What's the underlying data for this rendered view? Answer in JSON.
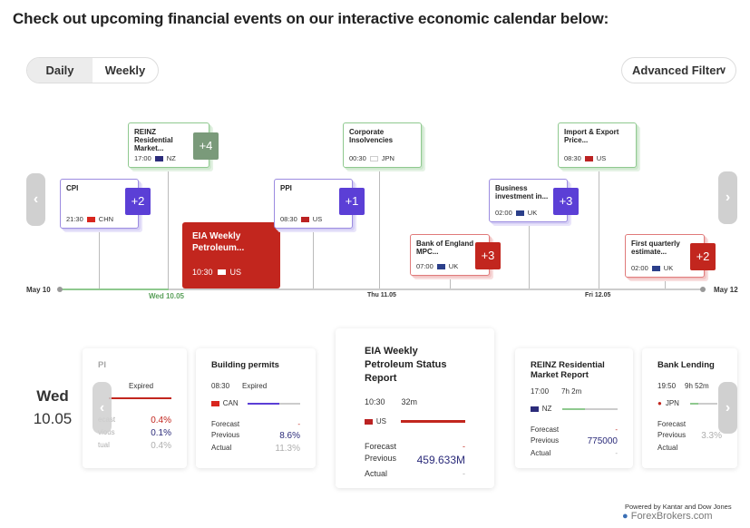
{
  "heading": "Check out upcoming financial events on our interactive economic calendar below:",
  "toggle": {
    "daily": "Daily",
    "weekly": "Weekly"
  },
  "advanced_filter": "Advanced Filter",
  "timeline": {
    "start": "May 10",
    "wed": "Wed 10.05",
    "thu": "Thu 11.05",
    "fri": "Fri 12.05",
    "end": "May 12"
  },
  "events": {
    "reinz": {
      "name": "REINZ Residential Market...",
      "time": "17:00",
      "country": "NZ",
      "badge": "+4"
    },
    "cpi": {
      "name": "CPI",
      "time": "21:30",
      "country": "CHN",
      "badge": "+2"
    },
    "eia": {
      "name": "EIA Weekly Petroleum...",
      "time": "10:30",
      "country": "US"
    },
    "corp": {
      "name": "Corporate Insolvencies",
      "time": "00:30",
      "country": "JPN"
    },
    "ppi": {
      "name": "PPI",
      "time": "08:30",
      "country": "US",
      "badge": "+1"
    },
    "boe": {
      "name": "Bank of England MPC...",
      "time": "07:00",
      "country": "UK",
      "badge": "+3"
    },
    "biz": {
      "name": "Business investment in...",
      "time": "02:00",
      "country": "UK",
      "badge": "+3"
    },
    "impexp": {
      "name": "Import & Export Price...",
      "time": "08:30",
      "country": "US"
    },
    "gdp": {
      "name": "First quarterly estimate...",
      "time": "02:00",
      "country": "UK",
      "badge": "+2"
    }
  },
  "day": {
    "name": "Wed",
    "date": "10.05"
  },
  "cards": {
    "cpi": {
      "title": "PI",
      "status": "Expired",
      "forecast_label": "ecast",
      "forecast": "0.4%",
      "previous_label": "vious",
      "previous": "0.1%",
      "actual_label": "tual",
      "actual": "0.4%"
    },
    "building": {
      "title": "Building permits",
      "time": "08:30",
      "status": "Expired",
      "country": "CAN",
      "forecast_label": "Forecast",
      "forecast": "-",
      "previous_label": "Previous",
      "previous": "8.6%",
      "actual_label": "Actual",
      "actual": "11.3%"
    },
    "eia": {
      "title": "EIA Weekly Petroleum Status Report",
      "time": "10:30",
      "duration": "32m",
      "country": "US",
      "forecast_label": "Forecast",
      "forecast": "-",
      "previous_label": "Previous",
      "previous": "459.633M",
      "actual_label": "Actual",
      "actual": "-"
    },
    "reinz": {
      "title": "REINZ Residential Market Report",
      "time": "17:00",
      "duration": "7h 2m",
      "country": "NZ",
      "forecast_label": "Forecast",
      "forecast": "-",
      "previous_label": "Previous",
      "previous": "775000",
      "actual_label": "Actual",
      "actual": "-"
    },
    "bank": {
      "title": "Bank Lending",
      "time": "19:50",
      "duration": "9h 52m",
      "country": "JPN",
      "forecast_label": "Forecast",
      "forecast": "-",
      "previous_label": "Previous",
      "previous": "3.3%",
      "actual_label": "Actual",
      "actual": ""
    }
  },
  "footer": {
    "powered": "Powered by Kantar and Dow Jones",
    "brand": "ForexBrokers.com"
  },
  "colors": {
    "red": "#c2261e",
    "purple": "#5b3fd6",
    "green": "#8fc98f",
    "navy": "#2b2b7a"
  }
}
